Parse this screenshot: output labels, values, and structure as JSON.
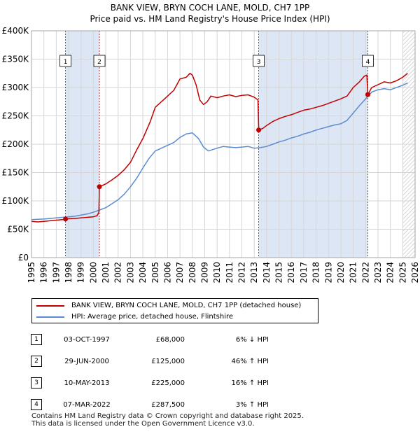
{
  "header": {
    "title_line1": "BANK VIEW, BRYN COCH LANE, MOLD, CH7 1PP",
    "title_line2": "Price paid vs. HM Land Registry's House Price Index (HPI)"
  },
  "colors": {
    "property": "#c00000",
    "hpi": "#5b8bd0",
    "shade": "#dce6f4",
    "grid": "#d6d6d6"
  },
  "chart_data": {
    "type": "line",
    "title": "Price paid vs. HM Land Registry's House Price Index (HPI)",
    "xlabel": "",
    "ylabel": "",
    "xlim": [
      1995,
      2026
    ],
    "ylim": [
      0,
      400000
    ],
    "y_ticks": [
      {
        "value": 0,
        "label": "£0"
      },
      {
        "value": 50000,
        "label": "£50K"
      },
      {
        "value": 100000,
        "label": "£100K"
      },
      {
        "value": 150000,
        "label": "£150K"
      },
      {
        "value": 200000,
        "label": "£200K"
      },
      {
        "value": 250000,
        "label": "£250K"
      },
      {
        "value": 300000,
        "label": "£300K"
      },
      {
        "value": 350000,
        "label": "£350K"
      },
      {
        "value": 400000,
        "label": "£400K"
      }
    ],
    "x_ticks": [
      "1995",
      "1996",
      "1997",
      "1998",
      "1999",
      "2000",
      "2001",
      "2002",
      "2003",
      "2004",
      "2005",
      "2006",
      "2007",
      "2008",
      "2009",
      "2010",
      "2011",
      "2012",
      "2013",
      "2014",
      "2015",
      "2016",
      "2017",
      "2018",
      "2019",
      "2020",
      "2021",
      "2022",
      "2023",
      "2024",
      "2025",
      "2026"
    ],
    "shaded_periods": [
      [
        1997.75,
        2000.49
      ],
      [
        2013.36,
        2022.18
      ]
    ],
    "forecast_start": 2025.0,
    "series": [
      {
        "name": "BANK VIEW, BRYN COCH LANE, MOLD, CH7 1PP (detached house)",
        "color": "#c00000",
        "x": [
          1995.0,
          1995.5,
          1996.0,
          1996.5,
          1997.0,
          1997.5,
          1997.75,
          1998.0,
          1998.5,
          1999.0,
          1999.5,
          2000.0,
          2000.3,
          2000.45,
          2000.49,
          2000.6,
          2001.0,
          2001.5,
          2002.0,
          2002.5,
          2003.0,
          2003.5,
          2004.0,
          2004.3,
          2004.6,
          2005.0,
          2005.5,
          2006.0,
          2006.5,
          2007.0,
          2007.5,
          2007.8,
          2008.0,
          2008.3,
          2008.6,
          2008.9,
          2009.2,
          2009.5,
          2010.0,
          2010.5,
          2011.0,
          2011.5,
          2012.0,
          2012.5,
          2013.0,
          2013.3,
          2013.36,
          2013.7,
          2014.0,
          2014.5,
          2015.0,
          2015.5,
          2016.0,
          2016.5,
          2017.0,
          2017.5,
          2018.0,
          2018.5,
          2019.0,
          2019.5,
          2020.0,
          2020.5,
          2021.0,
          2021.5,
          2021.9,
          2022.1,
          2022.18,
          2022.5,
          2023.0,
          2023.5,
          2024.0,
          2024.5,
          2025.0,
          2025.4
        ],
        "values": [
          64000,
          63000,
          64000,
          65000,
          66000,
          67000,
          68000,
          68500,
          69000,
          70000,
          71000,
          72000,
          74000,
          80000,
          125000,
          126000,
          130000,
          137000,
          145000,
          155000,
          168000,
          190000,
          210000,
          225000,
          240000,
          265000,
          275000,
          285000,
          295000,
          315000,
          318000,
          325000,
          322000,
          305000,
          278000,
          270000,
          275000,
          285000,
          282000,
          285000,
          287000,
          284000,
          286000,
          287000,
          283000,
          278000,
          225000,
          228000,
          233000,
          240000,
          245000,
          249000,
          252000,
          256000,
          260000,
          262000,
          265000,
          268000,
          272000,
          276000,
          280000,
          285000,
          300000,
          310000,
          320000,
          322000,
          287500,
          300000,
          305000,
          310000,
          308000,
          312000,
          318000,
          325000
        ]
      },
      {
        "name": "HPI: Average price, detached house, Flintshire",
        "color": "#5b8bd0",
        "x": [
          1995.0,
          1995.5,
          1996.0,
          1996.5,
          1997.0,
          1997.5,
          1998.0,
          1998.5,
          1999.0,
          1999.5,
          2000.0,
          2000.5,
          2001.0,
          2001.5,
          2002.0,
          2002.5,
          2003.0,
          2003.5,
          2004.0,
          2004.5,
          2005.0,
          2005.5,
          2006.0,
          2006.5,
          2007.0,
          2007.5,
          2008.0,
          2008.5,
          2008.9,
          2009.3,
          2009.7,
          2010.0,
          2010.5,
          2011.0,
          2011.5,
          2012.0,
          2012.5,
          2013.0,
          2013.5,
          2014.0,
          2014.5,
          2015.0,
          2015.5,
          2016.0,
          2016.5,
          2017.0,
          2017.5,
          2018.0,
          2018.5,
          2019.0,
          2019.5,
          2020.0,
          2020.5,
          2021.0,
          2021.5,
          2022.0,
          2022.5,
          2023.0,
          2023.5,
          2024.0,
          2024.5,
          2025.0,
          2025.4
        ],
        "values": [
          67000,
          67500,
          68000,
          69000,
          70000,
          71000,
          72000,
          73000,
          75000,
          77000,
          80000,
          84000,
          88000,
          95000,
          102000,
          112000,
          125000,
          140000,
          158000,
          175000,
          188000,
          193000,
          198000,
          203000,
          212000,
          218000,
          220000,
          210000,
          195000,
          188000,
          191000,
          193000,
          196000,
          195000,
          194000,
          195000,
          196000,
          193000,
          194000,
          196000,
          200000,
          204000,
          207000,
          211000,
          214000,
          218000,
          221000,
          225000,
          228000,
          231000,
          234000,
          236000,
          242000,
          255000,
          268000,
          280000,
          292000,
          296000,
          298000,
          296000,
          300000,
          304000,
          308000
        ]
      }
    ],
    "sale_markers": [
      {
        "label": "1",
        "x": 1997.75,
        "value": 68000
      },
      {
        "label": "2",
        "x": 2000.49,
        "value": 125000
      },
      {
        "label": "3",
        "x": 2013.36,
        "value": 225000
      },
      {
        "label": "4",
        "x": 2022.18,
        "value": 287500
      }
    ]
  },
  "legend": {
    "property_label": "BANK VIEW, BRYN COCH LANE, MOLD, CH7 1PP (detached house)",
    "hpi_label": "HPI: Average price, detached house, Flintshire"
  },
  "sales": [
    {
      "num": "1",
      "date": "03-OCT-1997",
      "price": "£68,000",
      "hpi": "6% ↓ HPI"
    },
    {
      "num": "2",
      "date": "29-JUN-2000",
      "price": "£125,000",
      "hpi": "46% ↑ HPI"
    },
    {
      "num": "3",
      "date": "10-MAY-2013",
      "price": "£225,000",
      "hpi": "16% ↑ HPI"
    },
    {
      "num": "4",
      "date": "07-MAR-2022",
      "price": "£287,500",
      "hpi": "3% ↑ HPI"
    }
  ],
  "footer": {
    "line1": "Contains HM Land Registry data © Crown copyright and database right 2025.",
    "line2": "This data is licensed under the Open Government Licence v3.0."
  }
}
